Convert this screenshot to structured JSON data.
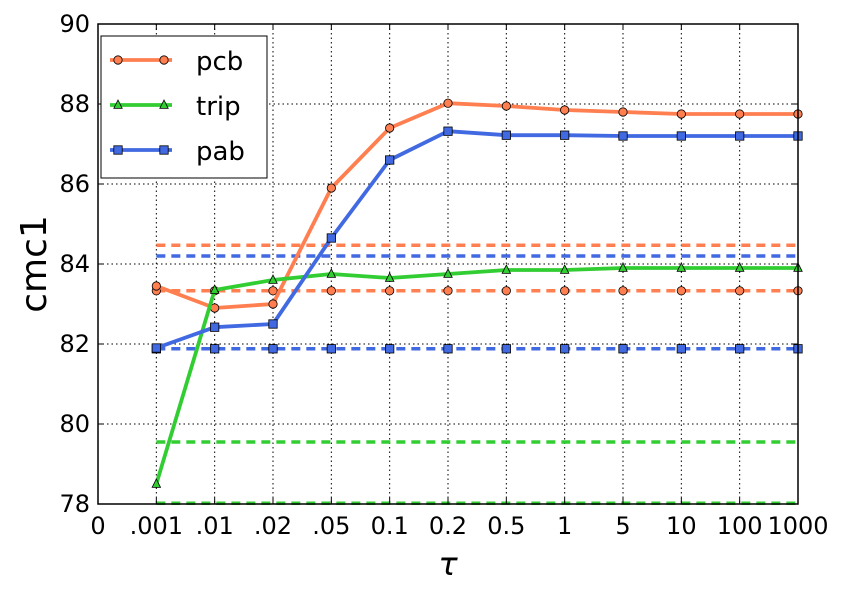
{
  "chart_data": {
    "type": "line",
    "title": "",
    "xlabel": "τ",
    "ylabel": "cmc1",
    "categories": [
      "0",
      ".001",
      ".01",
      ".02",
      ".05",
      "0.1",
      "0.2",
      "0.5",
      "1",
      "5",
      "10",
      "100",
      "1000"
    ],
    "ylim": [
      78,
      90
    ],
    "yticks": [
      "78",
      "80",
      "82",
      "84",
      "86",
      "88",
      "90"
    ],
    "grid": true,
    "legend_position": "top-left",
    "series": [
      {
        "name": "pcb",
        "color": "#ff7f50",
        "marker": "circle",
        "x": [
          ".001",
          ".01",
          ".02",
          ".05",
          "0.1",
          "0.2",
          "0.5",
          "1",
          "5",
          "10",
          "100",
          "1000"
        ],
        "values": [
          83.45,
          82.9,
          83.0,
          85.9,
          87.4,
          88.02,
          87.95,
          87.85,
          87.8,
          87.75,
          87.75,
          87.75
        ]
      },
      {
        "name": "trip",
        "color": "#32cd32",
        "marker": "triangle",
        "x": [
          ".001",
          ".01",
          ".02",
          ".05",
          "0.1",
          "0.2",
          "0.5",
          "1",
          "5",
          "10",
          "100",
          "1000"
        ],
        "values": [
          78.5,
          83.35,
          83.6,
          83.75,
          83.65,
          83.75,
          83.85,
          83.85,
          83.9,
          83.9,
          83.9,
          83.9
        ]
      },
      {
        "name": "pab",
        "color": "#4169e1",
        "marker": "square",
        "x": [
          ".001",
          ".01",
          ".02",
          ".05",
          "0.1",
          "0.2",
          "0.5",
          "1",
          "5",
          "10",
          "100",
          "1000"
        ],
        "values": [
          81.9,
          82.42,
          82.5,
          84.65,
          86.6,
          87.32,
          87.22,
          87.22,
          87.2,
          87.2,
          87.2,
          87.2
        ]
      }
    ],
    "reference_lines": [
      {
        "series": "pcb",
        "color": "#ff7f50",
        "y": 84.47,
        "markers": false
      },
      {
        "series": "pcb",
        "color": "#ff7f50",
        "y": 83.33,
        "markers": true,
        "marker": "circle",
        "marker_x": [
          ".001",
          ".01",
          ".02",
          ".05",
          "0.1",
          "0.2",
          "0.5",
          "1",
          "5",
          "10",
          "100",
          "1000"
        ]
      },
      {
        "series": "pab",
        "color": "#4169e1",
        "y": 84.2,
        "markers": false
      },
      {
        "series": "pab",
        "color": "#4169e1",
        "y": 81.88,
        "markers": true,
        "marker": "square",
        "marker_x": [
          ".001",
          ".01",
          ".02",
          ".05",
          "0.1",
          "0.2",
          "0.5",
          "1",
          "5",
          "10",
          "100",
          "1000"
        ]
      },
      {
        "series": "trip",
        "color": "#32cd32",
        "y": 79.55,
        "markers": false
      },
      {
        "series": "trip",
        "color": "#32cd32",
        "y": 78.02,
        "markers": false
      }
    ]
  }
}
